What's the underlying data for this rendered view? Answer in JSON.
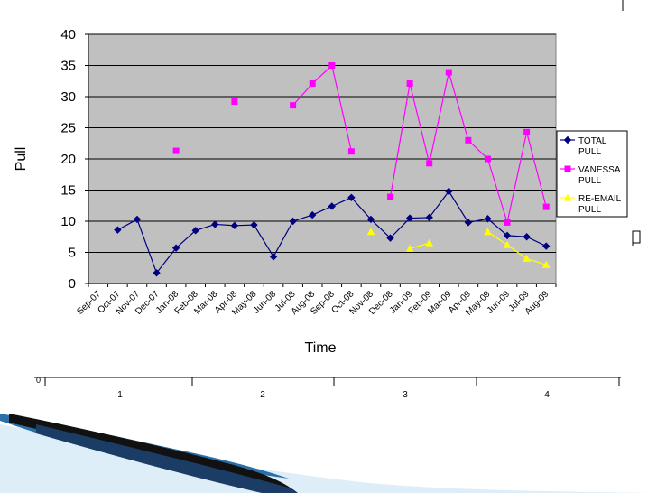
{
  "chart_data": {
    "type": "line",
    "title": "",
    "xlabel": "Time",
    "ylabel": "Pull",
    "ylim": [
      0,
      40
    ],
    "yticks": [
      0,
      5,
      10,
      15,
      20,
      25,
      30,
      35,
      40
    ],
    "grid": true,
    "legend_position": "right",
    "plot_background": "#c0c0c0",
    "categories": [
      "Sep-07",
      "Oct-07",
      "Nov-07",
      "Dec-07",
      "Jan-08",
      "Feb-08",
      "Mar-08",
      "Apr-08",
      "May-08",
      "Jun-08",
      "Jul-08",
      "Aug-08",
      "Sep-08",
      "Oct-08",
      "Nov-08",
      "Dec-08",
      "Jan-09",
      "Feb-09",
      "Mar-09",
      "Apr-09",
      "May-09",
      "Jun-09",
      "Jul-09",
      "Aug-09"
    ],
    "series": [
      {
        "name": "TOTAL PULL",
        "color": "#000080",
        "marker": "diamond",
        "values": [
          null,
          8.6,
          10.3,
          1.7,
          5.7,
          8.5,
          9.5,
          9.3,
          9.4,
          4.3,
          10.0,
          11.0,
          12.4,
          13.8,
          10.3,
          7.3,
          10.5,
          10.6,
          14.8,
          9.8,
          10.4,
          7.7,
          7.5,
          6.0
        ]
      },
      {
        "name": "VANESSA PULL",
        "color": "#ff00ff",
        "marker": "square",
        "values": [
          null,
          null,
          null,
          null,
          21.3,
          null,
          null,
          29.2,
          null,
          null,
          28.6,
          32.1,
          35.0,
          21.2,
          null,
          13.9,
          32.1,
          19.3,
          33.9,
          23.0,
          20.0,
          9.8,
          24.3,
          12.3
        ]
      },
      {
        "name": "RE-EMAIL PULL",
        "color": "#ffff00",
        "marker": "triangle",
        "values": [
          null,
          null,
          null,
          null,
          null,
          null,
          null,
          null,
          null,
          null,
          null,
          null,
          null,
          null,
          8.3,
          null,
          5.6,
          6.5,
          null,
          null,
          8.3,
          6.2,
          4.0,
          3.0
        ]
      }
    ],
    "bottom_axis": {
      "ticks": [
        "1",
        "2",
        "3",
        "4"
      ]
    },
    "side_marker_text": "0"
  }
}
